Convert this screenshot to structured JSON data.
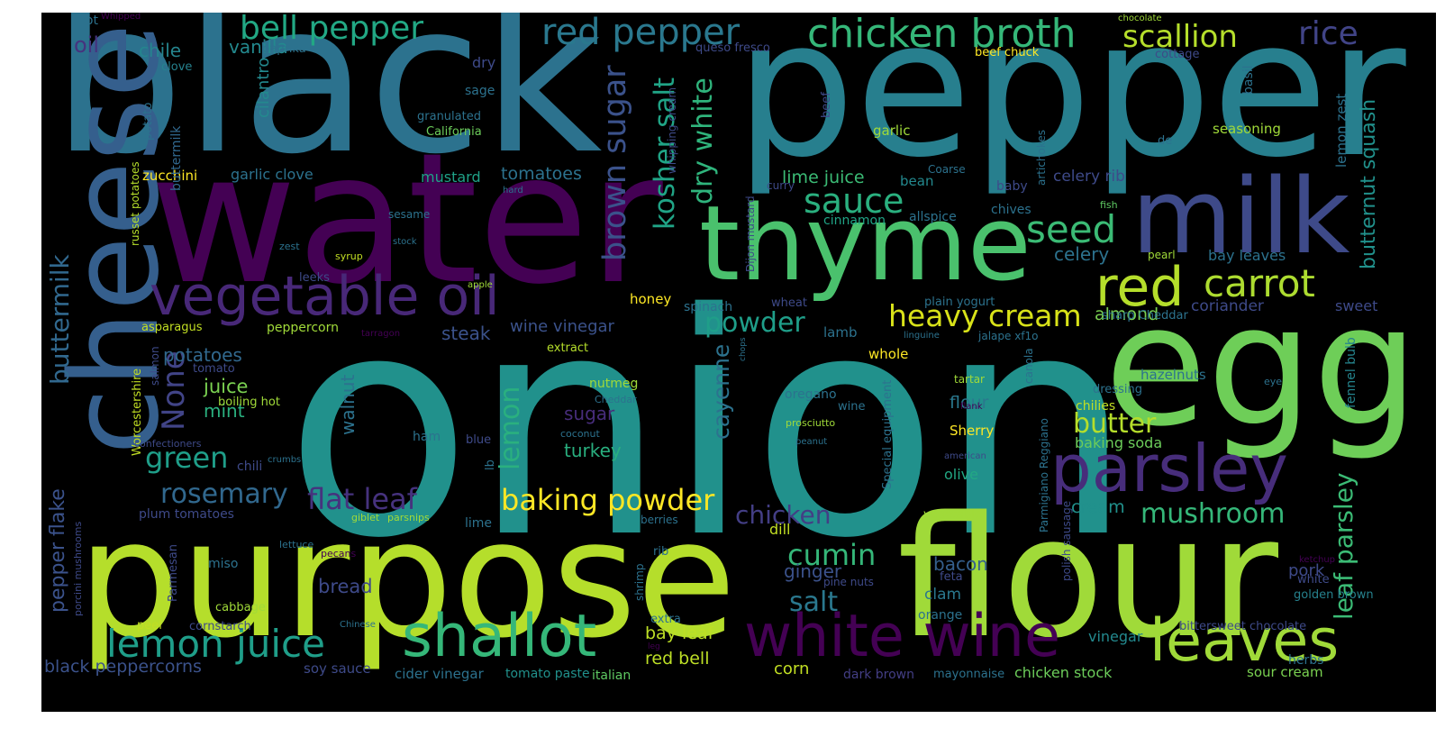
{
  "words": [
    {
      "text": "onion",
      "color": "#21918c"
    },
    {
      "text": "black",
      "color": "#2c728e"
    },
    {
      "text": "pepper",
      "color": "#277f8e"
    },
    {
      "text": "water",
      "color": "#440154"
    },
    {
      "text": "purpose",
      "color": "#b5de2b"
    },
    {
      "text": "flour",
      "color": "#a0da39"
    },
    {
      "text": "egg",
      "color": "#6ece58"
    },
    {
      "text": "cheese",
      "color": "#355f8d"
    },
    {
      "text": "thyme",
      "color": "#4ac16d"
    },
    {
      "text": "milk",
      "color": "#3e4a89"
    },
    {
      "text": "vegetable oil",
      "color": "#482878"
    },
    {
      "text": "parsley",
      "color": "#472d7b"
    },
    {
      "text": "white wine",
      "color": "#440154"
    },
    {
      "text": "shallot",
      "color": "#35b779"
    },
    {
      "text": "leaves",
      "color": "#a0da39"
    },
    {
      "text": "red",
      "color": "#b5de2b"
    },
    {
      "text": "lemon juice",
      "color": "#1f9e89"
    },
    {
      "text": "chicken broth",
      "color": "#35b779"
    },
    {
      "text": "red pepper",
      "color": "#2a788e"
    },
    {
      "text": "bell pepper",
      "color": "#22a884"
    },
    {
      "text": "scallion",
      "color": "#b5de2b"
    },
    {
      "text": "rice",
      "color": "#414487"
    },
    {
      "text": "carrot",
      "color": "#addc30"
    },
    {
      "text": "brown sugar",
      "color": "#3b528b"
    },
    {
      "text": "heavy cream",
      "color": "#d8e219"
    },
    {
      "text": "baking powder",
      "color": "#fde725"
    },
    {
      "text": "sauce",
      "color": "#2ab07f"
    },
    {
      "text": "seed",
      "color": "#3bbb75"
    },
    {
      "text": "kosher salt",
      "color": "#20a486"
    },
    {
      "text": "dry white",
      "color": "#2fb47c"
    },
    {
      "text": "cumin",
      "color": "#35b779"
    },
    {
      "text": "rosemary",
      "color": "#31688e"
    },
    {
      "text": "green",
      "color": "#1f9e89"
    },
    {
      "text": "flat leaf",
      "color": "#46327e"
    },
    {
      "text": "chicken",
      "color": "#433e85"
    },
    {
      "text": "mushroom",
      "color": "#35b779"
    },
    {
      "text": "leaf parsley",
      "color": "#3bbb75"
    },
    {
      "text": "buttermilk",
      "color": "#31688e"
    },
    {
      "text": "pepper flake",
      "color": "#3b528b"
    },
    {
      "text": "butternut squash",
      "color": "#21918c"
    },
    {
      "text": "powder",
      "color": "#1f9e89"
    },
    {
      "text": "lemon",
      "color": "#2ab07f"
    },
    {
      "text": "cayenne",
      "color": "#2c728e"
    },
    {
      "text": "butter",
      "color": "#b5de2b"
    },
    {
      "text": "salt",
      "color": "#2a788e"
    },
    {
      "text": "None",
      "color": "#414487"
    },
    {
      "text": "oil",
      "color": "#46337e"
    },
    {
      "text": "chile",
      "color": "#25858e"
    },
    {
      "text": "vanilla",
      "color": "#23898e"
    },
    {
      "text": "almond",
      "color": "#7ad151"
    },
    {
      "text": "celery",
      "color": "#2c728e"
    },
    {
      "text": "bacon",
      "color": "#355f8d"
    },
    {
      "text": "ginger",
      "color": "#3b528b"
    },
    {
      "text": "bread",
      "color": "#3e4a89"
    },
    {
      "text": "juice",
      "color": "#7ad151"
    },
    {
      "text": "mint",
      "color": "#2ab07f"
    },
    {
      "text": "turkey",
      "color": "#29af7f"
    },
    {
      "text": "cream",
      "color": "#21918c"
    },
    {
      "text": "sugar",
      "color": "#472d7b"
    },
    {
      "text": "potatoes",
      "color": "#31688e"
    },
    {
      "text": "steak",
      "color": "#3b528b"
    },
    {
      "text": "walnut",
      "color": "#2c728e"
    },
    {
      "text": "tomatoes",
      "color": "#2c728e"
    },
    {
      "text": "flour",
      "color": "#2a788e"
    },
    {
      "text": "red bell",
      "color": "#bddf26"
    },
    {
      "text": "bay leaf",
      "color": "#bddf26"
    },
    {
      "text": "pork",
      "color": "#3e4a89"
    },
    {
      "text": "clam",
      "color": "#2a788e"
    },
    {
      "text": "olive",
      "color": "#22a884"
    },
    {
      "text": "corn",
      "color": "#c2df23"
    },
    {
      "text": "lime juice",
      "color": "#3bbb75"
    },
    {
      "text": "celery rib",
      "color": "#3e4a89"
    },
    {
      "text": "coriander",
      "color": "#3e4a89"
    },
    {
      "text": "bay leaves",
      "color": "#2c728e"
    },
    {
      "text": "wine vinegar",
      "color": "#3b528b"
    },
    {
      "text": "black peppercorns",
      "color": "#3b528b"
    },
    {
      "text": "baking soda",
      "color": "#6ccd5a"
    },
    {
      "text": "sweet",
      "color": "#3e4a89"
    },
    {
      "text": "lemon zest",
      "color": "#2c728e"
    },
    {
      "text": "fennel bulb",
      "color": "#25858e"
    },
    {
      "text": "golden brown",
      "color": "#26828e"
    },
    {
      "text": "sour cream",
      "color": "#7ad151"
    },
    {
      "text": "chicken stock",
      "color": "#6ccd5a"
    },
    {
      "text": "dark brown",
      "color": "#433e85"
    },
    {
      "text": "mayonnaise",
      "color": "#2c728e"
    },
    {
      "text": "tomato paste",
      "color": "#21918c"
    },
    {
      "text": "soy sauce",
      "color": "#3e4a89"
    },
    {
      "text": "cider vinegar",
      "color": "#2c728e"
    },
    {
      "text": "italian",
      "color": "#5ec962"
    },
    {
      "text": "herbs",
      "color": "#2c728e"
    },
    {
      "text": "vinegar",
      "color": "#23898e"
    },
    {
      "text": "bittersweet chocolate",
      "color": "#3e4a89"
    },
    {
      "text": "garlic clove",
      "color": "#2c728e"
    },
    {
      "text": "mustard",
      "color": "#1fa187"
    },
    {
      "text": "zucchini",
      "color": "#fde725"
    },
    {
      "text": "honey",
      "color": "#fde725"
    },
    {
      "text": "cinnamon",
      "color": "#20a486"
    },
    {
      "text": "allspice",
      "color": "#2c728e"
    },
    {
      "text": "chives",
      "color": "#2c728e"
    },
    {
      "text": "baby",
      "color": "#3e4a89"
    },
    {
      "text": "bean",
      "color": "#23898e"
    },
    {
      "text": "cilantro",
      "color": "#23898e"
    },
    {
      "text": "sage",
      "color": "#2c728e"
    },
    {
      "text": "dry",
      "color": "#3e4a89"
    },
    {
      "text": "paprika",
      "color": "#2c728e"
    },
    {
      "text": "clove",
      "color": "#26828e"
    },
    {
      "text": "potato",
      "color": "#2c728e"
    },
    {
      "text": "California",
      "color": "#6ccd5a"
    },
    {
      "text": "granulated",
      "color": "#2c728e"
    },
    {
      "text": "garlic",
      "color": "#a0da39"
    },
    {
      "text": "seasoning",
      "color": "#a0da39"
    },
    {
      "text": "basil",
      "color": "#2c728e"
    },
    {
      "text": "beef chuck",
      "color": "#fde725"
    },
    {
      "text": "queso fresco",
      "color": "#3e4a89"
    },
    {
      "text": "cottage",
      "color": "#3e4a89"
    },
    {
      "text": "chocolate",
      "color": "#a0da39"
    },
    {
      "text": "hot",
      "color": "#2c728e"
    },
    {
      "text": "Whipped",
      "color": "#440154"
    },
    {
      "text": "russet potatoes",
      "color": "#b5de2b"
    },
    {
      "text": "buttermilk",
      "color": "#31688e"
    },
    {
      "text": "sesame",
      "color": "#2c728e"
    },
    {
      "text": "syrup",
      "color": "#c2df23"
    },
    {
      "text": "leeks",
      "color": "#3e4a89"
    },
    {
      "text": "asparagus",
      "color": "#c2df23"
    },
    {
      "text": "peppercorn",
      "color": "#a0da39"
    },
    {
      "text": "tarragon",
      "color": "#440154"
    },
    {
      "text": "extract",
      "color": "#b5de2b"
    },
    {
      "text": "whole",
      "color": "#fde725"
    },
    {
      "text": "lamb",
      "color": "#2c728e"
    },
    {
      "text": "spinach",
      "color": "#2c728e"
    },
    {
      "text": "plain yogurt",
      "color": "#2c728e"
    },
    {
      "text": "wheat",
      "color": "#3e4a89"
    },
    {
      "text": "Dijon mustard",
      "color": "#3e4a89"
    },
    {
      "text": "whipping cream",
      "color": "#3e4a89"
    },
    {
      "text": "artichokes",
      "color": "#2c728e"
    },
    {
      "text": "curry",
      "color": "#3e4a89"
    },
    {
      "text": "beef",
      "color": "#3e4a89"
    },
    {
      "text": "Coarse",
      "color": "#2c728e"
    },
    {
      "text": "fish",
      "color": "#5ec962"
    },
    {
      "text": "de",
      "color": "#2c728e"
    },
    {
      "text": "pearl",
      "color": "#a0da39"
    },
    {
      "text": "canola",
      "color": "#2c728e"
    },
    {
      "text": "jalape xf1o",
      "color": "#2c728e"
    },
    {
      "text": "linguine",
      "color": "#2c728e"
    },
    {
      "text": "sharp Cheddar",
      "color": "#2c728e"
    },
    {
      "text": "oregano",
      "color": "#2c728e"
    },
    {
      "text": "wine",
      "color": "#2c728e"
    },
    {
      "text": "nutmeg",
      "color": "#a0da39"
    },
    {
      "text": "Cheddar",
      "color": "#2c728e"
    },
    {
      "text": "Worcestershire",
      "color": "#c2df23"
    },
    {
      "text": "salmon",
      "color": "#3e4a89"
    },
    {
      "text": "tomato",
      "color": "#3e4a89"
    },
    {
      "text": "boiling hot",
      "color": "#a0da39"
    },
    {
      "text": "confectioners",
      "color": "#3e4a89"
    },
    {
      "text": "chili",
      "color": "#3e4a89"
    },
    {
      "text": "crumbs",
      "color": "#2c728e"
    },
    {
      "text": "ham",
      "color": "#2c728e"
    },
    {
      "text": "blue",
      "color": "#3e4a89"
    },
    {
      "text": "coconut",
      "color": "#2c728e"
    },
    {
      "text": "prosciutto",
      "color": "#a0da39"
    },
    {
      "text": "peanut",
      "color": "#2c728e"
    },
    {
      "text": "Special equipment",
      "color": "#2c728e"
    },
    {
      "text": "chilies",
      "color": "#c2df23"
    },
    {
      "text": "dressing",
      "color": "#2c728e"
    },
    {
      "text": "tartar",
      "color": "#a0da39"
    },
    {
      "text": "hazelnuts",
      "color": "#2c728e"
    },
    {
      "text": "eye",
      "color": "#2c728e"
    },
    {
      "text": "flank",
      "color": "#440154"
    },
    {
      "text": "Sherry",
      "color": "#fde725"
    },
    {
      "text": "american",
      "color": "#3e4a89"
    },
    {
      "text": "Parmigiano Reggiano",
      "color": "#2c728e"
    },
    {
      "text": "polish sausage",
      "color": "#3e4a89"
    },
    {
      "text": "vegetable",
      "color": "#a0da39"
    },
    {
      "text": "lettuce",
      "color": "#2c728e"
    },
    {
      "text": "giblet",
      "color": "#a0da39"
    },
    {
      "text": "parsnips",
      "color": "#a0da39"
    },
    {
      "text": "berries",
      "color": "#2c728e"
    },
    {
      "text": "lime",
      "color": "#2c728e"
    },
    {
      "text": "plum tomatoes",
      "color": "#3e4a89"
    },
    {
      "text": "pecans",
      "color": "#440154"
    },
    {
      "text": "miso",
      "color": "#2c728e"
    },
    {
      "text": "porcini mushrooms",
      "color": "#3e4a89"
    },
    {
      "text": "Parmesan",
      "color": "#3e4a89"
    },
    {
      "text": "lb",
      "color": "#2c728e"
    },
    {
      "text": "rib",
      "color": "#2c728e"
    },
    {
      "text": "shrimp",
      "color": "#2c728e"
    },
    {
      "text": "dill",
      "color": "#c2df23"
    },
    {
      "text": "pine nuts",
      "color": "#3e4a89"
    },
    {
      "text": "feta",
      "color": "#3e4a89"
    },
    {
      "text": "orange",
      "color": "#2c728e"
    },
    {
      "text": "ketchup",
      "color": "#440154"
    },
    {
      "text": "white",
      "color": "#3e4a89"
    },
    {
      "text": "cabbage",
      "color": "#a0da39"
    },
    {
      "text": "peel",
      "color": "#c2df23"
    },
    {
      "text": "cornstarch",
      "color": "#3e4a89"
    },
    {
      "text": "Chinese",
      "color": "#2c728e"
    },
    {
      "text": "extra",
      "color": "#2c728e"
    },
    {
      "text": "leg",
      "color": "#440154"
    },
    {
      "text": "chops",
      "color": "#2c728e"
    },
    {
      "text": "apple",
      "color": "#a0da39"
    },
    {
      "text": "zest",
      "color": "#2c728e"
    },
    {
      "text": "stock",
      "color": "#2c728e"
    },
    {
      "text": "hard",
      "color": "#2c728e"
    }
  ]
}
